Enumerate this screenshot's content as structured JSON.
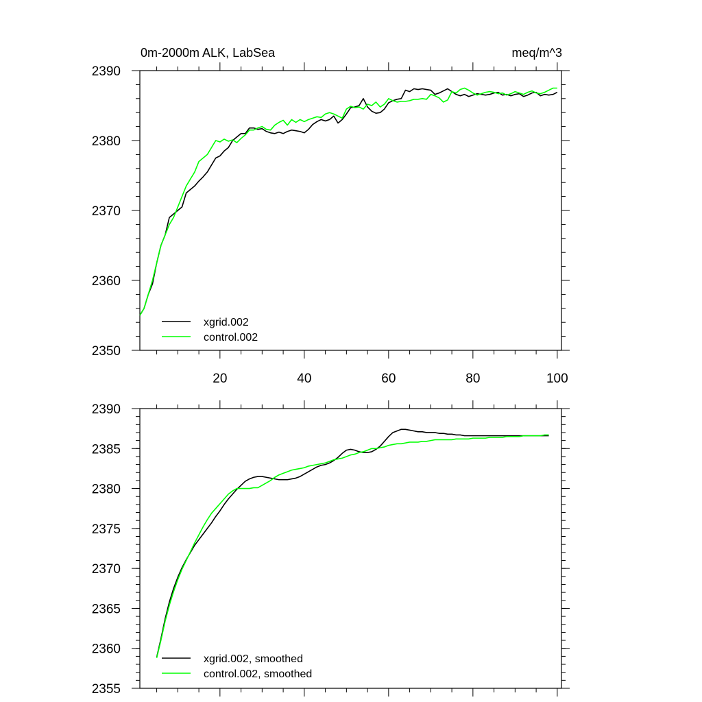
{
  "colors": {
    "xgrid": "#000000",
    "control": "#00ff00",
    "axis": "#000000",
    "background": "#ffffff"
  },
  "chart_data": [
    {
      "type": "line",
      "title": "0m-2000m ALK, LabSea",
      "units": "meq/m^3",
      "xlabel": "",
      "ylabel": "",
      "xlim": [
        1,
        101
      ],
      "ylim": [
        2350,
        2390
      ],
      "xticks": [
        20,
        40,
        60,
        80,
        100
      ],
      "yticks": [
        2350,
        2360,
        2370,
        2380,
        2390
      ],
      "legend_position": "bottom-left",
      "grid": false,
      "series": [
        {
          "name": "xgrid.002",
          "color_key": "xgrid",
          "x": [
            1,
            2,
            3,
            4,
            5,
            6,
            7,
            8,
            9,
            10,
            11,
            12,
            13,
            14,
            15,
            16,
            17,
            18,
            19,
            20,
            21,
            22,
            23,
            24,
            25,
            26,
            27,
            28,
            29,
            30,
            31,
            32,
            33,
            34,
            35,
            36,
            37,
            38,
            39,
            40,
            41,
            42,
            43,
            44,
            45,
            46,
            47,
            48,
            49,
            50,
            51,
            52,
            53,
            54,
            55,
            56,
            57,
            58,
            59,
            60,
            61,
            62,
            63,
            64,
            65,
            66,
            67,
            68,
            69,
            70,
            71,
            72,
            73,
            74,
            75,
            76,
            77,
            78,
            79,
            80,
            81,
            82,
            83,
            84,
            85,
            86,
            87,
            88,
            89,
            90,
            91,
            92,
            93,
            94,
            95,
            96,
            97,
            98,
            99,
            100
          ],
          "values": [
            2355.0,
            2356.0,
            2358.0,
            2359.5,
            2362.5,
            2365.0,
            2366.5,
            2369.0,
            2369.5,
            2370.0,
            2370.5,
            2372.5,
            2373.0,
            2373.5,
            2374.2,
            2374.8,
            2375.5,
            2376.5,
            2377.5,
            2377.8,
            2378.5,
            2379.0,
            2380.0,
            2380.5,
            2381.0,
            2381.0,
            2381.8,
            2381.8,
            2381.6,
            2381.7,
            2381.3,
            2381.1,
            2381.0,
            2381.2,
            2381.0,
            2381.3,
            2381.5,
            2381.4,
            2381.3,
            2381.1,
            2381.6,
            2382.3,
            2382.7,
            2383.0,
            2382.8,
            2383.0,
            2383.5,
            2382.5,
            2383.0,
            2383.8,
            2384.7,
            2384.8,
            2385.0,
            2386.0,
            2384.8,
            2384.2,
            2383.9,
            2384.0,
            2384.5,
            2385.4,
            2385.7,
            2385.9,
            2386.0,
            2387.2,
            2387.0,
            2387.4,
            2387.3,
            2387.4,
            2387.3,
            2387.2,
            2386.6,
            2386.8,
            2387.1,
            2387.4,
            2387.0,
            2386.6,
            2386.4,
            2386.6,
            2386.3,
            2386.5,
            2386.7,
            2386.6,
            2386.5,
            2386.6,
            2386.8,
            2386.9,
            2386.5,
            2386.6,
            2386.4,
            2386.6,
            2386.7,
            2386.3,
            2386.5,
            2386.8,
            2386.9,
            2386.4,
            2386.6,
            2386.5,
            2386.6,
            2386.9
          ]
        },
        {
          "name": "control.002",
          "color_key": "control",
          "x": [
            1,
            2,
            3,
            4,
            5,
            6,
            7,
            8,
            9,
            10,
            11,
            12,
            13,
            14,
            15,
            16,
            17,
            18,
            19,
            20,
            21,
            22,
            23,
            24,
            25,
            26,
            27,
            28,
            29,
            30,
            31,
            32,
            33,
            34,
            35,
            36,
            37,
            38,
            39,
            40,
            41,
            42,
            43,
            44,
            45,
            46,
            47,
            48,
            49,
            50,
            51,
            52,
            53,
            54,
            55,
            56,
            57,
            58,
            59,
            60,
            61,
            62,
            63,
            64,
            65,
            66,
            67,
            68,
            69,
            70,
            71,
            72,
            73,
            74,
            75,
            76,
            77,
            78,
            79,
            80,
            81,
            82,
            83,
            84,
            85,
            86,
            87,
            88,
            89,
            90,
            91,
            92,
            93,
            94,
            95,
            96,
            97,
            98,
            99,
            100
          ],
          "values": [
            2355.0,
            2356.0,
            2358.0,
            2360.0,
            2362.5,
            2365.0,
            2366.5,
            2368.0,
            2369.0,
            2370.5,
            2372.0,
            2373.5,
            2374.5,
            2375.5,
            2377.0,
            2377.5,
            2378.0,
            2379.0,
            2380.0,
            2379.8,
            2380.2,
            2379.9,
            2380.1,
            2379.7,
            2380.3,
            2380.8,
            2381.5,
            2381.5,
            2381.8,
            2382.0,
            2381.6,
            2381.5,
            2382.2,
            2382.6,
            2382.9,
            2382.2,
            2383.0,
            2382.6,
            2383.0,
            2382.7,
            2383.0,
            2383.2,
            2383.4,
            2383.3,
            2383.8,
            2384.0,
            2383.8,
            2383.5,
            2383.2,
            2384.5,
            2384.9,
            2384.7,
            2384.8,
            2384.5,
            2385.2,
            2385.0,
            2385.5,
            2384.8,
            2385.2,
            2386.0,
            2385.7,
            2385.5,
            2385.6,
            2385.6,
            2385.7,
            2385.9,
            2385.9,
            2386.0,
            2385.9,
            2386.6,
            2386.4,
            2386.1,
            2385.5,
            2385.8,
            2387.0,
            2386.8,
            2387.3,
            2387.5,
            2387.2,
            2386.8,
            2386.5,
            2386.7,
            2386.9,
            2387.0,
            2386.9,
            2386.7,
            2386.8,
            2386.5,
            2386.7,
            2387.0,
            2386.8,
            2386.6,
            2386.9,
            2387.1,
            2386.8,
            2386.7,
            2386.9,
            2387.2,
            2387.5,
            2387.5
          ]
        }
      ]
    },
    {
      "type": "line",
      "title": "",
      "xlabel": "",
      "ylabel": "",
      "xlim": [
        1,
        101
      ],
      "ylim": [
        2355,
        2390
      ],
      "xticks": [
        20,
        40,
        60,
        80,
        100
      ],
      "yticks": [
        2355,
        2360,
        2365,
        2370,
        2375,
        2380,
        2385,
        2390
      ],
      "legend_position": "bottom-left",
      "grid": false,
      "series": [
        {
          "name": "xgrid.002, smoothed",
          "color_key": "xgrid",
          "x": [
            5,
            6,
            7,
            8,
            9,
            10,
            11,
            12,
            13,
            14,
            15,
            16,
            17,
            18,
            19,
            20,
            21,
            22,
            23,
            24,
            25,
            26,
            27,
            28,
            29,
            30,
            31,
            32,
            33,
            34,
            35,
            36,
            37,
            38,
            39,
            40,
            41,
            42,
            43,
            44,
            45,
            46,
            47,
            48,
            49,
            50,
            51,
            52,
            53,
            54,
            55,
            56,
            57,
            58,
            59,
            60,
            61,
            62,
            63,
            64,
            65,
            66,
            67,
            68,
            69,
            70,
            71,
            72,
            73,
            74,
            75,
            76,
            77,
            78,
            79,
            80,
            81,
            82,
            83,
            84,
            85,
            86,
            87,
            88,
            89,
            90,
            91,
            92,
            93,
            94,
            95,
            96,
            97,
            98
          ],
          "values": [
            2358.9,
            2361.2,
            2363.7,
            2365.8,
            2367.5,
            2368.9,
            2370.1,
            2371.1,
            2372.0,
            2372.9,
            2373.6,
            2374.3,
            2375.0,
            2375.7,
            2376.5,
            2377.2,
            2378.0,
            2378.7,
            2379.3,
            2379.9,
            2380.4,
            2380.9,
            2381.2,
            2381.4,
            2381.5,
            2381.5,
            2381.4,
            2381.3,
            2381.2,
            2381.1,
            2381.1,
            2381.1,
            2381.2,
            2381.3,
            2381.5,
            2381.8,
            2382.1,
            2382.4,
            2382.7,
            2382.9,
            2383.0,
            2383.2,
            2383.5,
            2383.9,
            2384.4,
            2384.8,
            2384.9,
            2384.8,
            2384.6,
            2384.5,
            2384.5,
            2384.6,
            2384.9,
            2385.3,
            2385.9,
            2386.5,
            2387.0,
            2387.2,
            2387.4,
            2387.4,
            2387.3,
            2387.2,
            2387.1,
            2387.1,
            2387.0,
            2387.0,
            2387.0,
            2386.9,
            2386.9,
            2386.8,
            2386.8,
            2386.7,
            2386.7,
            2386.6,
            2386.6,
            2386.6,
            2386.6,
            2386.6,
            2386.6,
            2386.6,
            2386.6,
            2386.6,
            2386.6,
            2386.6,
            2386.6,
            2386.6,
            2386.6,
            2386.6,
            2386.6,
            2386.6,
            2386.6,
            2386.6,
            2386.6,
            2386.6
          ]
        },
        {
          "name": "control.002, smoothed",
          "color_key": "control",
          "x": [
            5,
            6,
            7,
            8,
            9,
            10,
            11,
            12,
            13,
            14,
            15,
            16,
            17,
            18,
            19,
            20,
            21,
            22,
            23,
            24,
            25,
            26,
            27,
            28,
            29,
            30,
            31,
            32,
            33,
            34,
            35,
            36,
            37,
            38,
            39,
            40,
            41,
            42,
            43,
            44,
            45,
            46,
            47,
            48,
            49,
            50,
            51,
            52,
            53,
            54,
            55,
            56,
            57,
            58,
            59,
            60,
            61,
            62,
            63,
            64,
            65,
            66,
            67,
            68,
            69,
            70,
            71,
            72,
            73,
            74,
            75,
            76,
            77,
            78,
            79,
            80,
            81,
            82,
            83,
            84,
            85,
            86,
            87,
            88,
            89,
            90,
            91,
            92,
            93,
            94,
            95,
            96,
            97,
            98
          ],
          "values": [
            2358.8,
            2361.0,
            2363.4,
            2365.4,
            2367.1,
            2368.6,
            2369.9,
            2371.0,
            2372.1,
            2373.2,
            2374.2,
            2375.2,
            2376.1,
            2376.9,
            2377.5,
            2378.1,
            2378.7,
            2379.3,
            2379.7,
            2380.0,
            2380.0,
            2380.0,
            2380.0,
            2380.1,
            2380.1,
            2380.4,
            2380.7,
            2381.0,
            2381.4,
            2381.7,
            2381.9,
            2382.1,
            2382.3,
            2382.4,
            2382.5,
            2382.6,
            2382.8,
            2382.9,
            2383.0,
            2383.1,
            2383.2,
            2383.4,
            2383.6,
            2383.7,
            2383.8,
            2384.0,
            2384.2,
            2384.3,
            2384.5,
            2384.6,
            2384.8,
            2385.0,
            2385.0,
            2385.1,
            2385.2,
            2385.4,
            2385.5,
            2385.6,
            2385.6,
            2385.7,
            2385.8,
            2385.8,
            2385.8,
            2385.9,
            2385.9,
            2386.0,
            2386.1,
            2386.1,
            2386.1,
            2386.1,
            2386.1,
            2386.2,
            2386.2,
            2386.2,
            2386.2,
            2386.3,
            2386.3,
            2386.3,
            2386.3,
            2386.4,
            2386.4,
            2386.4,
            2386.4,
            2386.5,
            2386.5,
            2386.5,
            2386.5,
            2386.6,
            2386.6,
            2386.6,
            2386.6,
            2386.6,
            2386.7,
            2386.7
          ]
        }
      ]
    }
  ]
}
